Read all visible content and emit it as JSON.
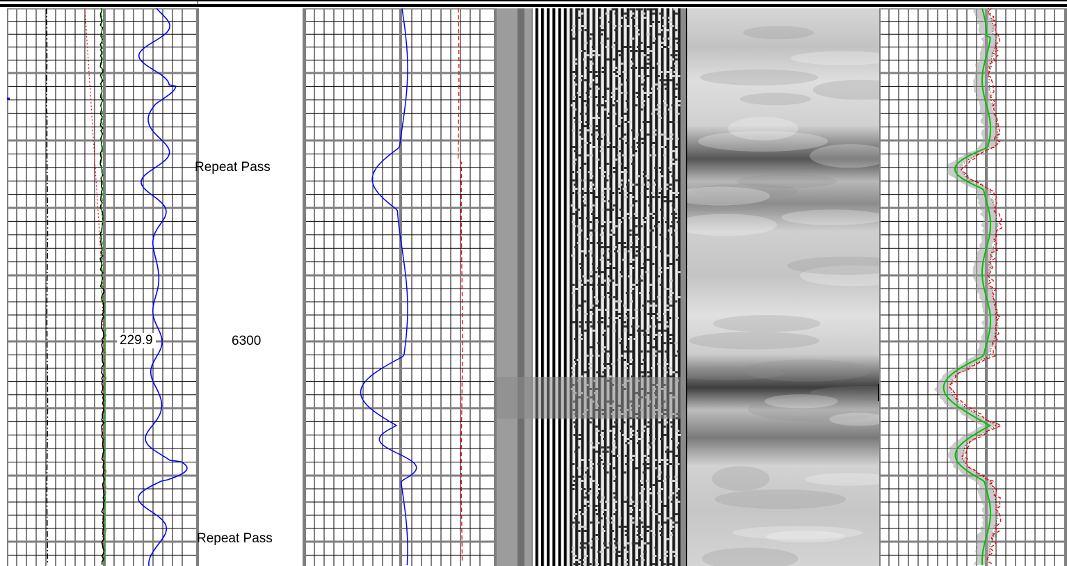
{
  "log": {
    "depth_label": "6300",
    "curve_value_label": "229.9",
    "annotations": [
      "Repeat Pass",
      "Repeat Pass"
    ]
  },
  "colors": {
    "grid_minor": "#000000",
    "grid_major": "#7f7f7f",
    "curve_blue": "#0000ff",
    "curve_red": "#ff0000",
    "curve_green": "#00c000",
    "curve_black": "#000000",
    "shade_gray": "#a0a0a0"
  },
  "tracks": [
    {
      "name": "track-1-gamma",
      "curves": [
        "black-dashdot",
        "red-dotted",
        "green-dashed",
        "black-solid",
        "blue-solid"
      ]
    },
    {
      "name": "track-depth"
    },
    {
      "name": "track-2-resistivity",
      "curves": [
        "blue-solid",
        "red-dashed"
      ]
    },
    {
      "name": "track-3-waveform-image"
    },
    {
      "name": "track-4-amplitude-image"
    },
    {
      "name": "track-5-shaded",
      "curves": [
        "green-solid",
        "red-dashed",
        "black-dotted"
      ]
    }
  ]
}
